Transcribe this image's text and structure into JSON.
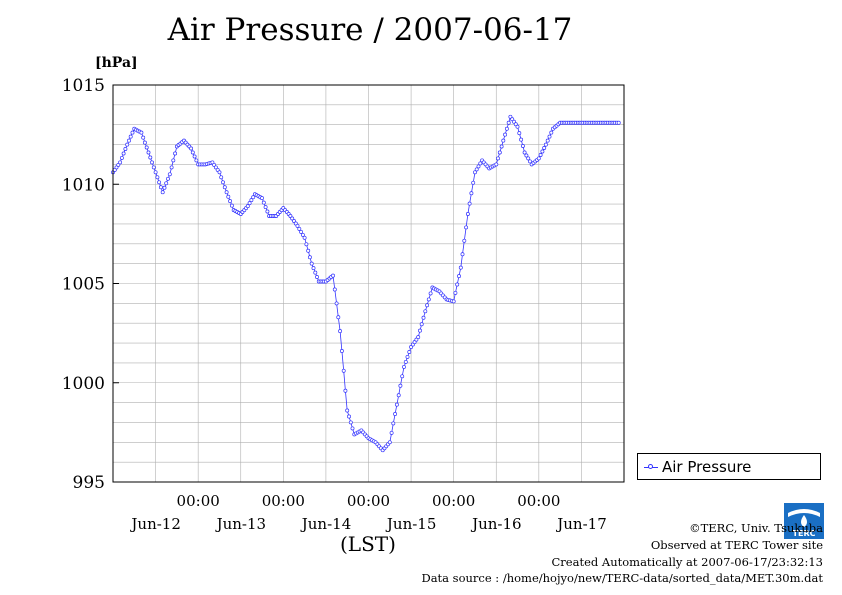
{
  "title": "Air Pressure / 2007-06-17",
  "footer": {
    "copyright": "©TERC, Univ. Tsukuba",
    "observed": "Observed at TERC Tower site",
    "created": "Created Automatically at 2007-06-17/23:32:13",
    "source": "Data source : /home/hojyo/new/TERC-data/sorted_data/MET.30m.dat"
  },
  "logo": {
    "text": "TERC",
    "color": "#1a6fc4"
  },
  "chart_data": {
    "type": "line",
    "title": "Air Pressure / 2007-06-17",
    "ylabel": "[hPa]",
    "xlabel": "(LST)",
    "ylim": [
      995,
      1015
    ],
    "yticks": [
      995,
      1000,
      1005,
      1010,
      1015
    ],
    "xlim_hours": [
      0,
      144
    ],
    "xticks": [
      {
        "hour": 24,
        "time": "00:00",
        "date": "Jun-12"
      },
      {
        "hour": 48,
        "time": "00:00",
        "date": "Jun-13"
      },
      {
        "hour": 72,
        "time": "00:00",
        "date": "Jun-14"
      },
      {
        "hour": 96,
        "time": "00:00",
        "date": "Jun-15"
      },
      {
        "hour": 120,
        "time": "00:00",
        "date": "Jun-16"
      },
      {
        "hour": 144,
        "time": "",
        "date": "Jun-17"
      }
    ],
    "grid": true,
    "legend_position": "right",
    "series": [
      {
        "name": "Air Pressure",
        "color": "#3333ff",
        "x_hours": [
          0,
          2,
          4,
          6,
          8,
          10,
          12,
          14,
          16,
          18,
          20,
          22,
          24,
          26,
          28,
          30,
          32,
          34,
          36,
          38,
          40,
          42,
          44,
          46,
          48,
          50,
          52,
          54,
          56,
          58,
          60,
          62,
          64,
          66,
          68,
          70,
          72,
          74,
          76,
          78,
          80,
          82,
          84,
          86,
          88,
          90,
          92,
          94,
          96,
          98,
          100,
          102,
          104,
          106,
          108,
          110,
          112,
          114,
          116,
          118,
          120,
          122,
          124,
          126,
          128,
          130,
          132,
          134,
          136,
          138,
          140,
          142,
          144
        ],
        "values": [
          1010.6,
          1011.1,
          1012.0,
          1012.8,
          1012.6,
          1011.6,
          1010.6,
          1009.6,
          1010.5,
          1011.9,
          1012.2,
          1011.8,
          1011.0,
          1011.0,
          1011.1,
          1010.6,
          1009.6,
          1008.7,
          1008.5,
          1008.9,
          1009.5,
          1009.3,
          1008.4,
          1008.4,
          1008.8,
          1008.4,
          1007.9,
          1007.3,
          1006.0,
          1005.1,
          1005.1,
          1005.4,
          1002.6,
          998.6,
          997.4,
          997.6,
          997.2,
          997.0,
          996.6,
          997.0,
          998.9,
          1000.8,
          1001.8,
          1002.3,
          1003.6,
          1004.8,
          1004.6,
          1004.2,
          1004.1,
          1005.8,
          1008.5,
          1010.6,
          1011.2,
          1010.8,
          1011.0,
          1012.2,
          1013.4,
          1012.9,
          1011.6,
          1011.0,
          1011.3,
          1012.0,
          1012.8,
          1013.1,
          1013.1,
          1013.1,
          1013.1,
          1013.1,
          1013.1,
          1013.1,
          1013.1,
          1013.1,
          1013.1
        ]
      }
    ]
  }
}
